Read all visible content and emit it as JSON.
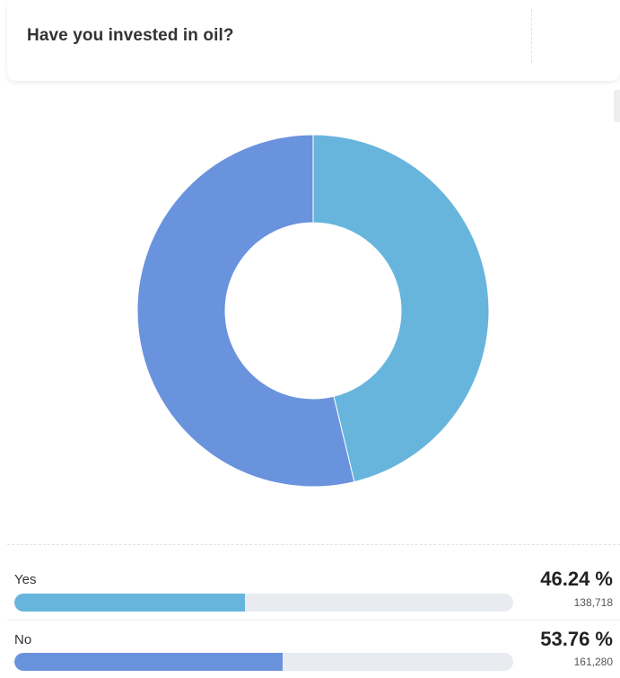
{
  "poll": {
    "question": "Have you invested in oil?"
  },
  "colors": {
    "yes": "#67b5dc",
    "no": "#6a93dd",
    "track": "#e8ebef"
  },
  "options": [
    {
      "label": "Yes",
      "percent_text": "46.24 %",
      "count_text": "138,718",
      "percent": 46.24
    },
    {
      "label": "No",
      "percent_text": "53.76 %",
      "count_text": "161,280",
      "percent": 53.76
    }
  ],
  "chart_data": {
    "type": "pie",
    "donut": true,
    "categories": [
      "Yes",
      "No"
    ],
    "values": [
      138718,
      161280
    ],
    "percentages": [
      46.24,
      53.76
    ],
    "colors": [
      "#67b5dc",
      "#6a93dd"
    ]
  }
}
